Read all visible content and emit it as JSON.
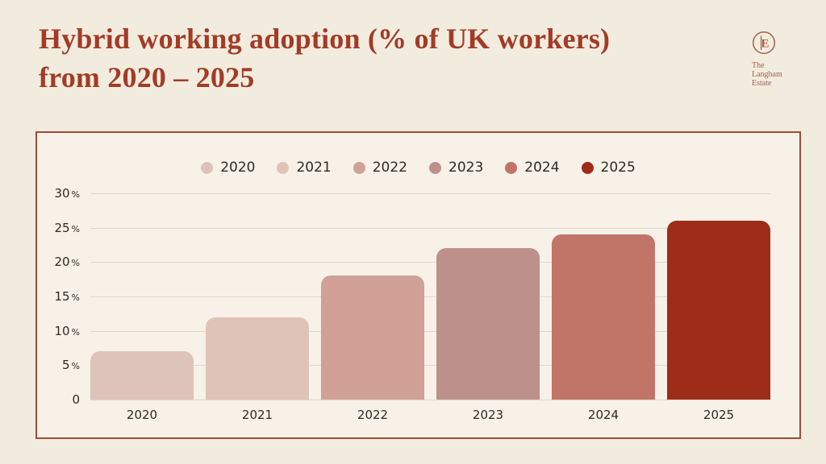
{
  "title": {
    "line1": "Hybrid working adoption (% of UK workers)",
    "line2": "from 2020 – 2025"
  },
  "logo": {
    "monogram": "E",
    "line1": "The",
    "line2": "Langham",
    "line3": "Estate"
  },
  "colors": {
    "page_bg": "#f2ecdf",
    "panel_bg": "#f7f1e7",
    "panel_border": "#9e4a37",
    "title": "#a33b26",
    "logo": "#a8604c",
    "ink": "#2e2a26",
    "grid": "#ddd7ca"
  },
  "chart_data": {
    "type": "bar",
    "title": "Hybrid working adoption (% of UK workers) from 2020 – 2025",
    "categories": [
      "2020",
      "2021",
      "2022",
      "2023",
      "2024",
      "2025"
    ],
    "values": [
      7,
      12,
      18,
      22,
      24,
      26
    ],
    "unit": "%",
    "xlabel": "",
    "ylabel": "",
    "ylim": [
      0,
      30
    ],
    "yticks": [
      0,
      5,
      10,
      15,
      20,
      25,
      30
    ],
    "ytick_suffix": "%",
    "grid": true,
    "legend_position": "top",
    "bar_colors": [
      "#ddc3b9",
      "#e0c3b7",
      "#d1a096",
      "#bd908c",
      "#c07568",
      "#9d2c18"
    ]
  }
}
